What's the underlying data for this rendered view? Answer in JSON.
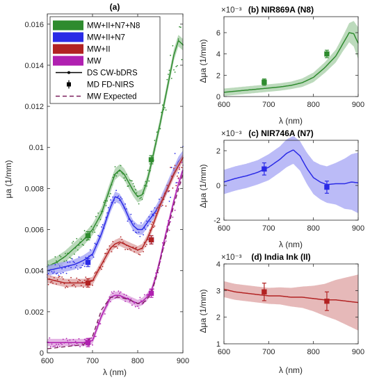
{
  "chart_data": [
    {
      "panel": "(a)",
      "type": "line",
      "title": "(a)",
      "xlabel": "λ (nm)",
      "ylabel": "μa (1/mm)",
      "xlim": [
        600,
        900
      ],
      "ylim": [
        0,
        0.0165
      ],
      "xticks": [
        600,
        700,
        800,
        900
      ],
      "yticks": [
        0,
        0.002,
        0.004,
        0.006,
        0.008,
        0.01,
        0.012,
        0.014,
        0.016
      ],
      "ytick_labels": [
        "0",
        "0.002",
        "0.004",
        "0.006",
        "0.008",
        "0.01",
        "0.012",
        "0.014",
        "0.016"
      ],
      "grid": false,
      "legend_position": "top-left",
      "legend": [
        {
          "label": "MW+II+N7+N8",
          "color": "#2e8b2e",
          "kind": "patch"
        },
        {
          "label": "MW+II+N7",
          "color": "#2a2ae6",
          "kind": "patch"
        },
        {
          "label": "MW+II",
          "color": "#b22222",
          "kind": "patch"
        },
        {
          "label": "MW",
          "color": "#b020b0",
          "kind": "patch"
        },
        {
          "label": "DS CW-bDRS",
          "color": "#000000",
          "kind": "line-dot"
        },
        {
          "label": "MD FD-NIRS",
          "color": "#000000",
          "kind": "errorbar"
        },
        {
          "label": "MW Expected",
          "color": "#7a1f5c",
          "kind": "dashed"
        }
      ],
      "x": [
        600,
        620,
        640,
        660,
        680,
        700,
        720,
        740,
        750,
        760,
        770,
        780,
        790,
        800,
        810,
        820,
        830,
        840,
        850,
        860,
        870,
        880,
        890,
        900
      ],
      "series": [
        {
          "name": "MW+II+N7+N8",
          "color": "#2e8b2e",
          "values": [
            0.0042,
            0.0044,
            0.0047,
            0.0051,
            0.0055,
            0.006,
            0.0068,
            0.0081,
            0.0087,
            0.0089,
            0.0087,
            0.0083,
            0.0079,
            0.0076,
            0.0077,
            0.0083,
            0.0092,
            0.0102,
            0.0112,
            0.0123,
            0.0134,
            0.0145,
            0.0152,
            0.015
          ],
          "band": 0.00028
        },
        {
          "name": "MW+II+N7",
          "color": "#2a2ae6",
          "values": [
            0.004,
            0.0041,
            0.0042,
            0.0043,
            0.0045,
            0.0048,
            0.0058,
            0.0071,
            0.0076,
            0.0075,
            0.0071,
            0.0066,
            0.0062,
            0.006,
            0.006,
            0.0063,
            0.0066,
            0.0069,
            0.0073,
            0.0078,
            0.0083,
            0.0088,
            0.0093,
            0.0096
          ],
          "band": 0.00025
        },
        {
          "name": "MW+II",
          "color": "#b22222",
          "values": [
            0.0036,
            0.0035,
            0.0034,
            0.0034,
            0.0034,
            0.0035,
            0.0043,
            0.0051,
            0.0053,
            0.0054,
            0.0053,
            0.0052,
            0.0051,
            0.005,
            0.0051,
            0.0055,
            0.006,
            0.0066,
            0.0072,
            0.0077,
            0.0082,
            0.0087,
            0.0091,
            0.0095
          ],
          "band": 0.0002
        },
        {
          "name": "MW",
          "color": "#b020b0",
          "values": [
            0.0005,
            0.0005,
            0.0005,
            0.0005,
            0.0005,
            0.0006,
            0.0018,
            0.0027,
            0.0028,
            0.0028,
            0.0027,
            0.0026,
            0.0025,
            0.0024,
            0.0025,
            0.0027,
            0.003,
            0.0037,
            0.0046,
            0.0056,
            0.0065,
            0.0074,
            0.0082,
            0.0089
          ],
          "band": 0.00018
        }
      ],
      "expected_mw": {
        "name": "MW Expected",
        "x": [
          600,
          640,
          680,
          700,
          720,
          740,
          760,
          780,
          800,
          810,
          820,
          830,
          840,
          860,
          880,
          900
        ],
        "values": [
          0.0002,
          0.0003,
          0.0004,
          0.0008,
          0.0021,
          0.0027,
          0.0027,
          0.0026,
          0.0024,
          0.0024,
          0.0026,
          0.0029,
          0.0036,
          0.0054,
          0.0072,
          0.0087
        ]
      },
      "fd_nirs_points": [
        {
          "series": "MW+II+N7+N8",
          "x": 690,
          "y": 0.0057,
          "err": 0.0002
        },
        {
          "series": "MW+II+N7+N8",
          "x": 830,
          "y": 0.0094,
          "err": 0.0002
        },
        {
          "series": "MW+II+N7",
          "x": 690,
          "y": 0.0044,
          "err": 0.0002
        },
        {
          "series": "MW+II+N7",
          "x": 830,
          "y": 0.0055,
          "err": 0.0002
        },
        {
          "series": "MW+II",
          "x": 690,
          "y": 0.0034,
          "err": 0.0002
        },
        {
          "series": "MW+II",
          "x": 830,
          "y": 0.0055,
          "err": 0.0002
        },
        {
          "series": "MW",
          "x": 690,
          "y": 0.0005,
          "err": 0.0002
        },
        {
          "series": "MW",
          "x": 830,
          "y": 0.0029,
          "err": 0.0002
        }
      ]
    },
    {
      "panel": "(b)",
      "type": "line",
      "title": "(b) NIR869A (N8)",
      "exponent_label": "×10⁻³",
      "xlabel": "λ (nm)",
      "ylabel": "Δμa (1/mm)",
      "xlim": [
        600,
        900
      ],
      "ylim": [
        0,
        7.5
      ],
      "xticks": [
        600,
        700,
        800,
        900
      ],
      "yticks": [
        0,
        2,
        4,
        6
      ],
      "color": "#2e8b2e",
      "x": [
        600,
        625,
        650,
        675,
        700,
        725,
        750,
        775,
        800,
        825,
        850,
        865,
        880,
        890,
        900
      ],
      "values": [
        0.4,
        0.5,
        0.6,
        0.7,
        0.8,
        0.9,
        1.05,
        1.3,
        1.8,
        2.7,
        3.8,
        4.9,
        6.0,
        5.9,
        5.0
      ],
      "band": [
        0.35,
        0.35,
        0.35,
        0.35,
        0.35,
        0.35,
        0.35,
        0.4,
        0.45,
        0.5,
        0.6,
        0.7,
        0.9,
        1.2,
        1.5
      ],
      "fd_nirs_points": [
        {
          "x": 690,
          "y": 1.35,
          "err": 0.3
        },
        {
          "x": 830,
          "y": 4.0,
          "err": 0.35
        }
      ]
    },
    {
      "panel": "(c)",
      "type": "line",
      "title": "(c) NIR746A (N7)",
      "exponent_label": "×10⁻³",
      "xlabel": "λ (nm)",
      "ylabel": "Δμa (1/mm)",
      "xlim": [
        600,
        900
      ],
      "ylim": [
        -2,
        2.6
      ],
      "xticks": [
        600,
        700,
        800,
        900
      ],
      "yticks": [
        -2,
        0,
        2
      ],
      "color": "#2a2ae6",
      "x": [
        600,
        625,
        650,
        675,
        700,
        725,
        740,
        755,
        770,
        785,
        800,
        815,
        830,
        850,
        870,
        885,
        900
      ],
      "values": [
        0.2,
        0.4,
        0.55,
        0.75,
        1.05,
        1.5,
        1.85,
        2.05,
        1.7,
        1.0,
        0.45,
        0.2,
        0.05,
        0.1,
        0.1,
        0.2,
        0.15
      ],
      "band": [
        0.7,
        0.7,
        0.7,
        0.7,
        0.75,
        0.75,
        0.8,
        0.8,
        0.85,
        0.9,
        0.95,
        1.0,
        1.05,
        1.2,
        1.45,
        1.6,
        1.75
      ],
      "fd_nirs_points": [
        {
          "x": 690,
          "y": 0.95,
          "err": 0.35
        },
        {
          "x": 830,
          "y": -0.1,
          "err": 0.35
        }
      ]
    },
    {
      "panel": "(d)",
      "type": "line",
      "title": "(d) India Ink (II)",
      "exponent_label": "×10⁻³",
      "xlabel": "λ (nm)",
      "ylabel": "Δμa (1/mm)",
      "xlim": [
        600,
        900
      ],
      "ylim": [
        1,
        4
      ],
      "xticks": [
        600,
        700,
        800,
        900
      ],
      "yticks": [
        1,
        2,
        3,
        4
      ],
      "color": "#b22222",
      "x": [
        600,
        625,
        650,
        675,
        700,
        725,
        750,
        775,
        800,
        825,
        850,
        875,
        900
      ],
      "values": [
        3.05,
        2.95,
        2.9,
        2.85,
        2.8,
        2.8,
        2.75,
        2.75,
        2.7,
        2.65,
        2.65,
        2.6,
        2.55
      ],
      "band": [
        0.3,
        0.3,
        0.3,
        0.3,
        0.3,
        0.32,
        0.35,
        0.4,
        0.48,
        0.6,
        0.75,
        0.9,
        1.05
      ],
      "fd_nirs_points": [
        {
          "x": 690,
          "y": 2.95,
          "err": 0.33
        },
        {
          "x": 830,
          "y": 2.6,
          "err": 0.35
        }
      ]
    }
  ]
}
